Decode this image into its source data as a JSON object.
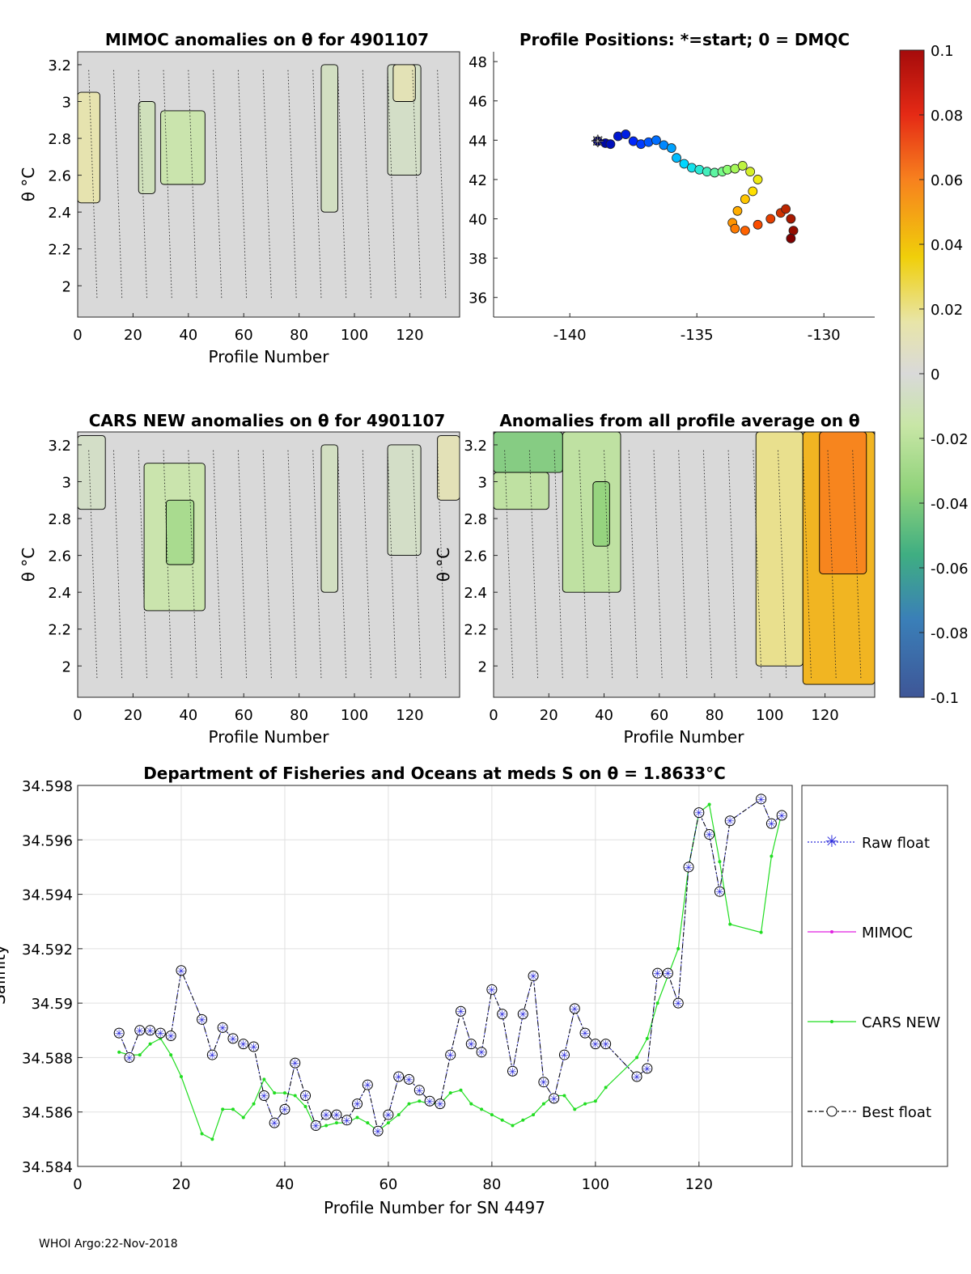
{
  "footer": "WHOI Argo:22-Nov-2018",
  "charts": {
    "mimoc": {
      "title": "MIMOC anomalies on θ  for 4901107",
      "xlabel": "Profile Number",
      "ylabel": "θ °C"
    },
    "positions": {
      "title": "Profile Positions: *=start; 0 = DMQC"
    },
    "cars": {
      "title": "CARS NEW anomalies on θ for 4901107",
      "xlabel": "Profile Number",
      "ylabel": "θ °C"
    },
    "allavg": {
      "title": "Anomalies from all profile average on θ",
      "xlabel": "Profile Number",
      "ylabel": "θ °C"
    },
    "salinity": {
      "title": "Department of Fisheries and Oceans at meds S on θ = 1.8633°C",
      "xlabel": "Profile Number for SN 4497",
      "ylabel": "Salinity",
      "legend": [
        "Raw float",
        "MIMOC",
        "CARS NEW",
        "Best float"
      ]
    }
  },
  "chart_data": [
    {
      "id": "mimoc",
      "type": "heatmap",
      "title": "MIMOC anomalies on θ  for 4901107",
      "xlabel": "Profile Number",
      "ylabel": "θ °C",
      "xlim": [
        0,
        138
      ],
      "ylim": [
        1.83,
        3.27
      ],
      "xticks": [
        0,
        20,
        40,
        60,
        80,
        100,
        120
      ],
      "yticks": [
        2,
        2.2,
        2.4,
        2.6,
        2.8,
        3,
        3.2
      ],
      "features": [
        {
          "x": [
            0,
            8
          ],
          "y": [
            2.45,
            3.05
          ],
          "value": 0.015
        },
        {
          "x": [
            22,
            28
          ],
          "y": [
            2.5,
            3.0
          ],
          "value": -0.01
        },
        {
          "x": [
            30,
            46
          ],
          "y": [
            2.55,
            2.95
          ],
          "value": -0.015
        },
        {
          "x": [
            88,
            94
          ],
          "y": [
            2.4,
            3.2
          ],
          "value": -0.008
        },
        {
          "x": [
            112,
            124
          ],
          "y": [
            2.6,
            3.2
          ],
          "value": -0.006
        },
        {
          "x": [
            114,
            122
          ],
          "y": [
            3.0,
            3.2
          ],
          "value": 0.012
        }
      ]
    },
    {
      "id": "positions",
      "type": "scatter",
      "title": "Profile Positions: *=start; 0 = DMQC",
      "xlim": [
        -143,
        -128
      ],
      "ylim": [
        35,
        48.5
      ],
      "xticks": [
        -140,
        -135,
        -130
      ],
      "yticks": [
        36,
        38,
        40,
        42,
        44,
        46,
        48
      ],
      "lon": [
        -138.9,
        -138.6,
        -138.4,
        -138.1,
        -137.8,
        -137.5,
        -137.2,
        -136.9,
        -136.6,
        -136.3,
        -136.0,
        -135.8,
        -135.5,
        -135.2,
        -134.9,
        -134.6,
        -134.3,
        -134.0,
        -133.8,
        -133.5,
        -133.2,
        -132.9,
        -132.6,
        -132.8,
        -133.1,
        -133.4,
        -133.6,
        -133.5,
        -133.1,
        -132.6,
        -132.1,
        -131.7,
        -131.5,
        -131.3,
        -131.2,
        -131.3
      ],
      "lat": [
        43.95,
        43.85,
        43.8,
        44.2,
        44.3,
        43.95,
        43.8,
        43.9,
        44.0,
        43.75,
        43.6,
        43.1,
        42.8,
        42.6,
        42.5,
        42.4,
        42.35,
        42.4,
        42.5,
        42.55,
        42.7,
        42.4,
        42.0,
        41.4,
        41.0,
        40.4,
        39.8,
        39.5,
        39.4,
        39.7,
        40.0,
        40.3,
        40.5,
        40.0,
        39.4,
        39.0
      ]
    },
    {
      "id": "cars",
      "type": "heatmap",
      "title": "CARS NEW anomalies on θ for 4901107",
      "xlabel": "Profile Number",
      "ylabel": "θ °C",
      "xlim": [
        0,
        138
      ],
      "ylim": [
        1.83,
        3.27
      ],
      "xticks": [
        0,
        20,
        40,
        60,
        80,
        100,
        120
      ],
      "yticks": [
        2,
        2.2,
        2.4,
        2.6,
        2.8,
        3,
        3.2
      ],
      "features": [
        {
          "x": [
            24,
            46
          ],
          "y": [
            2.3,
            3.1
          ],
          "value": -0.015
        },
        {
          "x": [
            32,
            42
          ],
          "y": [
            2.55,
            2.9
          ],
          "value": -0.028
        },
        {
          "x": [
            0,
            10
          ],
          "y": [
            2.85,
            3.25
          ],
          "value": -0.006
        },
        {
          "x": [
            88,
            94
          ],
          "y": [
            2.4,
            3.2
          ],
          "value": -0.008
        },
        {
          "x": [
            112,
            124
          ],
          "y": [
            2.6,
            3.2
          ],
          "value": -0.006
        },
        {
          "x": [
            130,
            138
          ],
          "y": [
            2.9,
            3.25
          ],
          "value": 0.012
        }
      ]
    },
    {
      "id": "allavg",
      "type": "heatmap",
      "title": "Anomalies from all profile average on θ",
      "xlabel": "Profile Number",
      "ylabel": "θ °C",
      "xlim": [
        0,
        138
      ],
      "ylim": [
        1.83,
        3.27
      ],
      "xticks": [
        0,
        20,
        40,
        60,
        80,
        100,
        120
      ],
      "yticks": [
        2,
        2.2,
        2.4,
        2.6,
        2.8,
        3,
        3.2
      ],
      "features": [
        {
          "x": [
            0,
            25
          ],
          "y": [
            3.05,
            3.27
          ],
          "value": -0.04
        },
        {
          "x": [
            0,
            20
          ],
          "y": [
            2.85,
            3.05
          ],
          "value": -0.02
        },
        {
          "x": [
            25,
            46
          ],
          "y": [
            2.4,
            3.27
          ],
          "value": -0.02
        },
        {
          "x": [
            36,
            42
          ],
          "y": [
            2.65,
            3.0
          ],
          "value": -0.035
        },
        {
          "x": [
            95,
            112
          ],
          "y": [
            2.0,
            3.27
          ],
          "value": 0.02
        },
        {
          "x": [
            112,
            138
          ],
          "y": [
            1.9,
            3.27
          ],
          "value": 0.045
        },
        {
          "x": [
            118,
            135
          ],
          "y": [
            2.5,
            3.27
          ],
          "value": 0.06
        }
      ]
    },
    {
      "id": "colorbar",
      "type": "heatmap",
      "clim": [
        -0.1,
        0.1
      ],
      "ticks": [
        "0.1",
        "0.08",
        "0.06",
        "0.04",
        "0.02",
        "0",
        "-0.02",
        "-0.04",
        "-0.06",
        "-0.08",
        "-0.1"
      ]
    },
    {
      "id": "salinity",
      "type": "line",
      "title": "Department of Fisheries and Oceans at meds S on θ = 1.8633°C",
      "xlabel": "Profile Number for SN 4497",
      "ylabel": "Salinity",
      "xlim": [
        0,
        138
      ],
      "ylim": [
        34.584,
        34.598
      ],
      "xticks": [
        0,
        20,
        40,
        60,
        80,
        100,
        120
      ],
      "yticks": [
        "34.584",
        "34.586",
        "34.588",
        "34.59",
        "34.592",
        "34.594",
        "34.596",
        "34.598"
      ],
      "grid": true,
      "legend_position": "right",
      "series": [
        {
          "name": "Best float",
          "x": [
            8,
            10,
            12,
            14,
            16,
            18,
            20,
            24,
            26,
            28,
            30,
            32,
            34,
            36,
            38,
            40,
            42,
            44,
            46,
            48,
            50,
            52,
            54,
            56,
            58,
            60,
            62,
            64,
            66,
            68,
            70,
            72,
            74,
            76,
            78,
            80,
            82,
            84,
            86,
            88,
            90,
            92,
            94,
            96,
            98,
            100,
            102,
            108,
            110,
            112,
            114,
            116,
            118,
            120,
            122,
            124,
            126,
            132,
            134,
            136
          ],
          "y": [
            34.5889,
            34.588,
            34.589,
            34.589,
            34.5889,
            34.5888,
            34.5912,
            34.5894,
            34.5881,
            34.5891,
            34.5887,
            34.5885,
            34.5884,
            34.5866,
            34.5856,
            34.5861,
            34.5878,
            34.5866,
            34.5855,
            34.5859,
            34.5859,
            34.5857,
            34.5863,
            34.587,
            34.5853,
            34.5859,
            34.5873,
            34.5872,
            34.5868,
            34.5864,
            34.5863,
            34.5881,
            34.5897,
            34.5885,
            34.5882,
            34.5905,
            34.5896,
            34.5875,
            34.5896,
            34.591,
            34.5871,
            34.5865,
            34.5881,
            34.5898,
            34.5889,
            34.5885,
            34.5885,
            34.5873,
            34.5876,
            34.5911,
            34.5911,
            34.59,
            34.595,
            34.597,
            34.5962,
            34.5941,
            34.5967,
            34.5975,
            34.5966,
            34.5969
          ]
        },
        {
          "name": "Raw float",
          "x": [
            8,
            10,
            12,
            14,
            16,
            18,
            20,
            24,
            26,
            28,
            30,
            32,
            34,
            36,
            38,
            40,
            42,
            44,
            46,
            48,
            50,
            52,
            54,
            56,
            58,
            60,
            62,
            64,
            66,
            68,
            70,
            72,
            74,
            76,
            78,
            80,
            82,
            84,
            86,
            88,
            90,
            92,
            94,
            96,
            98,
            100,
            102,
            108,
            110,
            112,
            114,
            116,
            118,
            120,
            122,
            124,
            126,
            132,
            134,
            136
          ],
          "y": [
            34.5889,
            34.588,
            34.589,
            34.589,
            34.5889,
            34.5888,
            34.5912,
            34.5894,
            34.5881,
            34.5891,
            34.5887,
            34.5885,
            34.5884,
            34.5866,
            34.5856,
            34.5861,
            34.5878,
            34.5866,
            34.5855,
            34.5859,
            34.5859,
            34.5857,
            34.5863,
            34.587,
            34.5853,
            34.5859,
            34.5873,
            34.5872,
            34.5868,
            34.5864,
            34.5863,
            34.5881,
            34.5897,
            34.5885,
            34.5882,
            34.5905,
            34.5896,
            34.5875,
            34.5896,
            34.591,
            34.5871,
            34.5865,
            34.5881,
            34.5898,
            34.5889,
            34.5885,
            34.5885,
            34.5873,
            34.5876,
            34.5911,
            34.5911,
            34.59,
            34.595,
            34.597,
            34.5962,
            34.5941,
            34.5967,
            34.5975,
            34.5966,
            34.5969
          ]
        },
        {
          "name": "CARS NEW",
          "x": [
            8,
            10,
            12,
            14,
            16,
            18,
            20,
            24,
            26,
            28,
            30,
            32,
            34,
            36,
            38,
            40,
            42,
            44,
            46,
            48,
            50,
            52,
            54,
            56,
            58,
            60,
            62,
            64,
            66,
            68,
            70,
            72,
            74,
            76,
            78,
            80,
            82,
            84,
            86,
            88,
            90,
            92,
            94,
            96,
            98,
            100,
            102,
            108,
            110,
            112,
            114,
            116,
            118,
            120,
            122,
            124,
            126,
            132,
            134,
            136
          ],
          "y": [
            34.5882,
            34.5881,
            34.5881,
            34.5885,
            34.5887,
            34.5881,
            34.5873,
            34.5852,
            34.585,
            34.5861,
            34.5861,
            34.5858,
            34.5863,
            34.5872,
            34.5867,
            34.5867,
            34.5866,
            34.5862,
            34.5854,
            34.5855,
            34.5856,
            34.5856,
            34.5858,
            34.5856,
            34.5853,
            34.5856,
            34.5859,
            34.5863,
            34.5864,
            34.5863,
            34.5863,
            34.5867,
            34.5868,
            34.5863,
            34.5861,
            34.5859,
            34.5857,
            34.5855,
            34.5857,
            34.5859,
            34.5863,
            34.5866,
            34.5866,
            34.5861,
            34.5863,
            34.5864,
            34.5869,
            34.588,
            34.5887,
            34.59,
            34.591,
            34.592,
            34.595,
            34.597,
            34.5973,
            34.5952,
            34.5929,
            34.5926,
            34.5954,
            34.597
          ]
        },
        {
          "name": "MIMOC",
          "x": [],
          "y": []
        }
      ]
    }
  ]
}
